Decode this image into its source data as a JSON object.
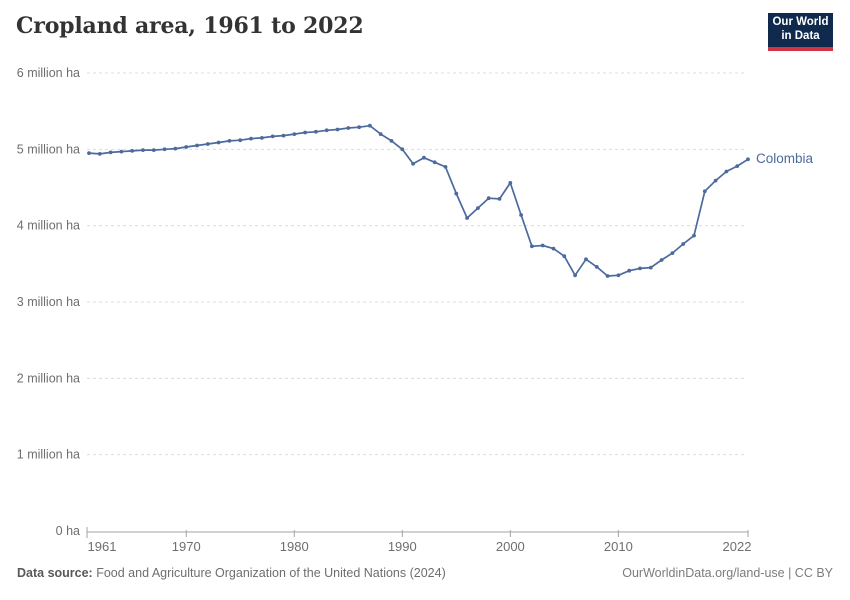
{
  "header": {
    "title": "Cropland area, 1961 to 2022"
  },
  "logo": {
    "line1": "Our World",
    "line2": "in Data",
    "bg_color": "#0f2a4d",
    "accent_color": "#d23345",
    "text_color": "#ffffff"
  },
  "chart_data": {
    "type": "line",
    "title": "Cropland area, 1961 to 2022",
    "unit": "million ha",
    "xlim": [
      1961,
      2022
    ],
    "ylim": [
      0,
      6
    ],
    "grid": "horizontal dashed",
    "legend_position": "end-of-line label",
    "x_ticks": [
      1961,
      1970,
      1980,
      1990,
      2000,
      2010,
      2022
    ],
    "y_ticks": [
      {
        "value": 0,
        "label": "0 ha"
      },
      {
        "value": 1,
        "label": "1 million ha"
      },
      {
        "value": 2,
        "label": "2 million ha"
      },
      {
        "value": 3,
        "label": "3 million ha"
      },
      {
        "value": 4,
        "label": "4 million ha"
      },
      {
        "value": 5,
        "label": "5 million ha"
      },
      {
        "value": 6,
        "label": "6 million ha"
      }
    ],
    "series": [
      {
        "name": "Colombia",
        "color": "#4c6a9c",
        "x": [
          1961,
          1962,
          1963,
          1964,
          1965,
          1966,
          1967,
          1968,
          1969,
          1970,
          1971,
          1972,
          1973,
          1974,
          1975,
          1976,
          1977,
          1978,
          1979,
          1980,
          1981,
          1982,
          1983,
          1984,
          1985,
          1986,
          1987,
          1988,
          1989,
          1990,
          1991,
          1992,
          1993,
          1994,
          1995,
          1996,
          1997,
          1998,
          1999,
          2000,
          2001,
          2002,
          2003,
          2004,
          2005,
          2006,
          2007,
          2008,
          2009,
          2010,
          2011,
          2012,
          2013,
          2014,
          2015,
          2016,
          2017,
          2018,
          2019,
          2020,
          2021,
          2022
        ],
        "values": [
          4.95,
          4.94,
          4.96,
          4.97,
          4.98,
          4.99,
          4.99,
          5.0,
          5.01,
          5.03,
          5.05,
          5.07,
          5.09,
          5.11,
          5.12,
          5.14,
          5.15,
          5.17,
          5.18,
          5.2,
          5.22,
          5.23,
          5.25,
          5.26,
          5.28,
          5.29,
          5.31,
          5.2,
          5.11,
          5.0,
          4.81,
          4.89,
          4.83,
          4.77,
          4.42,
          4.1,
          4.23,
          4.36,
          4.35,
          4.56,
          4.14,
          3.73,
          3.74,
          3.7,
          3.6,
          3.35,
          3.56,
          3.46,
          3.34,
          3.35,
          3.41,
          3.44,
          3.45,
          3.55,
          3.64,
          3.76,
          3.87,
          4.45,
          4.59,
          4.71,
          4.78,
          4.87
        ]
      }
    ],
    "end_label": "Colombia"
  },
  "footer": {
    "datasource_label": "Data source:",
    "datasource": "Food and Agriculture Organization of the United Nations (2024)",
    "attribution": "OurWorldinData.org/land-use | CC BY"
  },
  "colors": {
    "line": "#4c6a9c",
    "gridline": "#dcdcdc",
    "axis": "#a3a3a3",
    "tick_text": "#6e6e6e"
  }
}
